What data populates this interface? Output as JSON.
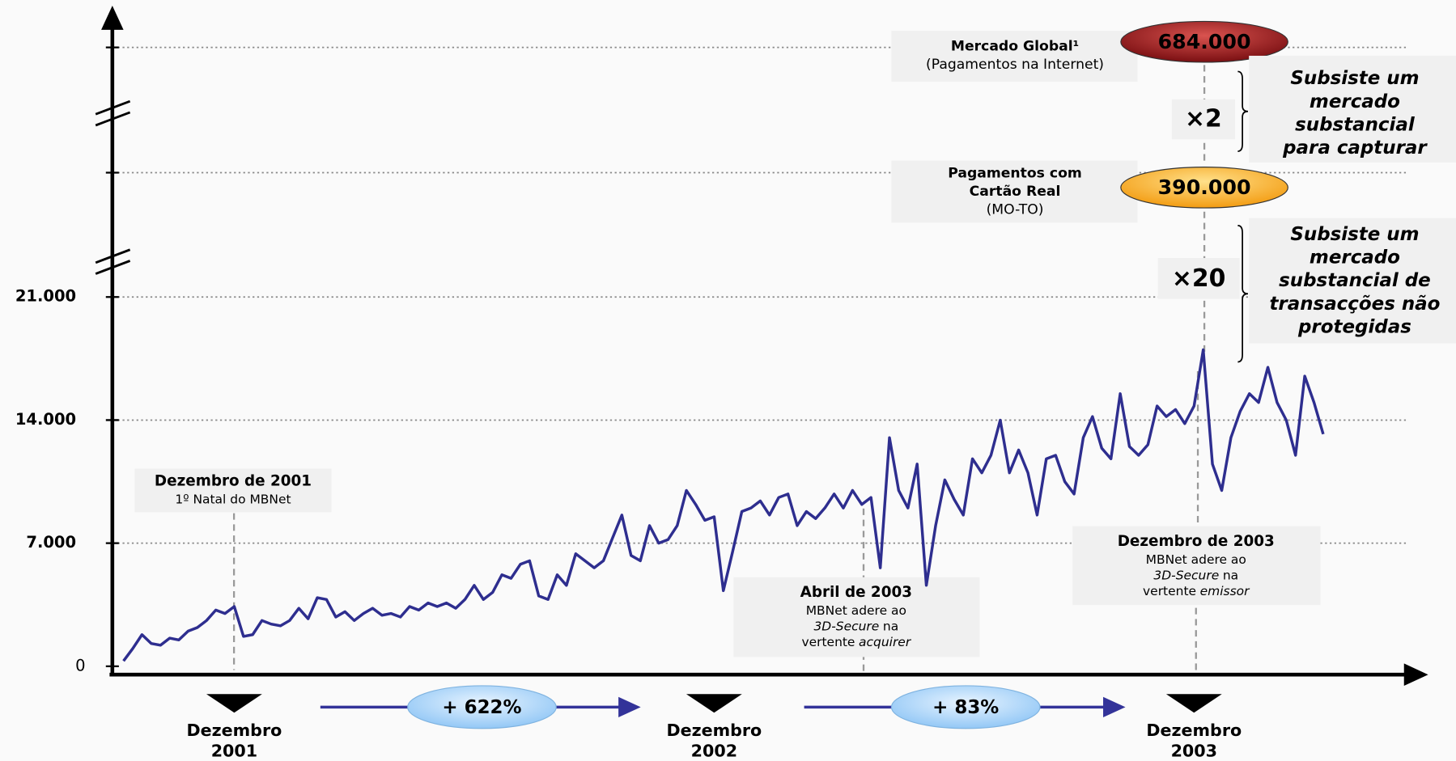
{
  "chart_data": {
    "type": "line",
    "color": "#2e2e8f",
    "ylim": [
      0,
      21000
    ],
    "yticks": [
      0,
      {
        "value": 7000,
        "label": "7.000"
      },
      {
        "value": 14000,
        "label": "14.000"
      },
      {
        "value": 21000,
        "label": "21.000"
      }
    ],
    "grid": true,
    "categories": [
      null,
      null,
      null,
      null,
      null,
      null,
      null,
      null,
      null,
      null,
      null,
      null,
      "Dezembro 2001",
      null,
      null,
      null,
      null,
      null,
      null,
      null,
      null,
      null,
      null,
      null,
      null,
      null,
      null,
      null,
      null,
      null,
      null,
      null,
      null,
      null,
      null,
      null,
      null,
      null,
      null,
      null,
      null,
      null,
      null,
      null,
      null,
      null,
      null,
      null,
      null,
      null,
      null,
      null,
      null,
      null,
      null,
      null,
      null,
      null,
      null,
      null,
      null,
      null,
      null,
      null,
      "Dezembro 2002",
      null,
      null,
      null,
      null,
      null,
      null,
      null,
      null,
      null,
      null,
      null,
      null,
      null,
      null,
      null,
      null,
      null,
      null,
      null,
      null,
      null,
      null,
      null,
      null,
      null,
      null,
      null,
      null,
      null,
      null,
      null,
      null,
      null,
      null,
      null,
      null,
      null,
      null,
      null,
      null,
      null,
      null,
      null,
      null,
      null,
      null,
      null,
      null,
      null,
      null,
      null,
      "Dezembro 2003",
      null,
      null,
      null,
      null,
      null,
      null,
      null,
      null,
      null,
      null,
      null,
      null,
      null,
      null
    ],
    "values": [
      300,
      1000,
      1800,
      1300,
      1200,
      1600,
      1500,
      2000,
      2200,
      2600,
      3200,
      3000,
      3400,
      1700,
      1800,
      2600,
      2400,
      2300,
      2600,
      3300,
      2700,
      3900,
      3800,
      2800,
      3100,
      2600,
      3000,
      3300,
      2900,
      3000,
      2800,
      3400,
      3200,
      3600,
      3400,
      3600,
      3300,
      3800,
      4600,
      3800,
      4200,
      5200,
      5000,
      5800,
      6000,
      4000,
      3800,
      5200,
      4600,
      6400,
      6000,
      5600,
      6000,
      7300,
      8600,
      6300,
      6000,
      8000,
      7000,
      7200,
      8000,
      10000,
      9200,
      8300,
      8500,
      4300,
      6500,
      8800,
      9000,
      9400,
      8600,
      9600,
      9800,
      8000,
      8800,
      8400,
      9000,
      9800,
      9000,
      10000,
      9200,
      9600,
      5600,
      13000,
      10000,
      9000,
      11500,
      4600,
      8000,
      10600,
      9500,
      8600,
      11800,
      11000,
      12000,
      14000,
      11000,
      12300,
      11000,
      8600,
      11800,
      12000,
      10500,
      9800,
      13000,
      14200,
      12400,
      11800,
      15500,
      12500,
      12000,
      12600,
      14800,
      14200,
      14600,
      13800,
      14800,
      18000,
      11500,
      10000,
      13000,
      14500,
      15500,
      15000,
      17000,
      15000,
      14000,
      12000,
      16500,
      15000,
      13200
    ],
    "levels": [
      {
        "value": 684000,
        "label": "684.000",
        "name": [
          "Mercado Global¹",
          "(Pagamentos na Internet)"
        ]
      },
      {
        "value": 390000,
        "label": "390.000",
        "name": [
          "Pagamentos com",
          "Cartão Real",
          "(MO-TO)"
        ]
      }
    ],
    "multipliers": [
      "×2",
      "×20"
    ],
    "remarks": [
      [
        "Subsiste um",
        "mercado",
        "substancial",
        "para capturar"
      ],
      [
        "Subsiste um",
        "mercado",
        "substancial de",
        "transacções não",
        "protegidas"
      ]
    ],
    "annotations": [
      {
        "title": "Dezembro de 2001",
        "lines": [
          [
            {
              "text": "1º Natal do MBNet"
            }
          ]
        ]
      },
      {
        "title": "Abril de 2003",
        "lines": [
          [
            {
              "text": "MBNet adere ao"
            }
          ],
          [
            {
              "text": "3D-Secure",
              "italic": true
            },
            {
              "text": "na"
            }
          ],
          [
            {
              "text": "vertente"
            },
            {
              "text": "acquirer",
              "italic": true
            }
          ]
        ]
      },
      {
        "title": "Dezembro de 2003",
        "lines": [
          [
            {
              "text": "MBNet adere ao"
            }
          ],
          [
            {
              "text": "3D-Secure",
              "italic": true
            },
            {
              "text": "na"
            }
          ],
          [
            {
              "text": "vertente"
            },
            {
              "text": "emissor",
              "italic": true
            }
          ]
        ]
      }
    ],
    "growth": [
      "+ 622%",
      "+ 83%"
    ]
  }
}
